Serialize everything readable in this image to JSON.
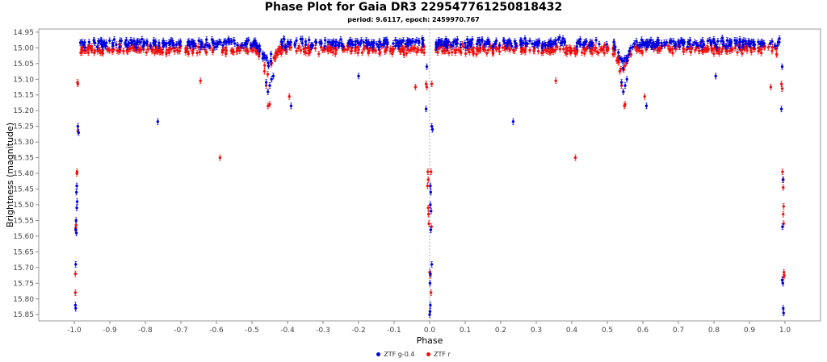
{
  "chart_data": {
    "type": "scatter",
    "title": "Phase Plot for Gaia DR3 2295477612508184​32",
    "subtitle": "period: 9.6117, epoch: 2459970.767",
    "xlabel": "Phase",
    "ylabel": "Brightness (magnitude)",
    "xlim": [
      -1.1,
      1.1
    ],
    "ylim": [
      15.87,
      14.94
    ],
    "y_inverted": true,
    "x_ticks": [
      "-1.0",
      "-0.9",
      "-0.8",
      "-0.7",
      "-0.6",
      "-0.5",
      "-0.4",
      "-0.3",
      "-0.2",
      "-0.1",
      "0.0",
      "0.1",
      "0.2",
      "0.3",
      "0.4",
      "0.5",
      "0.6",
      "0.7",
      "0.8",
      "0.9",
      "1.0"
    ],
    "y_ticks": [
      "14.95",
      "15.00",
      "15.05",
      "15.10",
      "15.15",
      "15.20",
      "15.25",
      "15.30",
      "15.35",
      "15.40",
      "15.45",
      "15.50",
      "15.55",
      "15.60",
      "15.65",
      "15.70",
      "15.75",
      "15.80",
      "15.85"
    ],
    "grid": false,
    "legend_position": "bottom-center",
    "series": [
      {
        "name": "ZTF g-0.4",
        "color": "#0000dd",
        "baseline": 14.985,
        "scatter": 0.02,
        "points": [
          [
            -0.99,
            15.25
          ],
          [
            -0.988,
            15.27
          ],
          [
            -0.993,
            15.44
          ],
          [
            -0.994,
            15.46
          ],
          [
            -0.992,
            15.49
          ],
          [
            -0.993,
            15.51
          ],
          [
            -0.995,
            15.55
          ],
          [
            -0.996,
            15.58
          ],
          [
            -0.994,
            15.59
          ],
          [
            -0.996,
            15.69
          ],
          [
            -0.997,
            15.82
          ],
          [
            -0.996,
            15.83
          ],
          [
            -0.765,
            15.235
          ],
          [
            -0.39,
            15.185
          ],
          [
            -0.2,
            15.09
          ],
          [
            -0.46,
            15.11
          ],
          [
            -0.455,
            15.14
          ],
          [
            -0.45,
            15.12
          ],
          [
            -0.445,
            15.1
          ],
          [
            -0.44,
            15.09
          ],
          [
            -0.01,
            15.195
          ],
          [
            -0.008,
            15.06
          ],
          [
            0.006,
            15.25
          ],
          [
            0.008,
            15.26
          ],
          [
            0.002,
            15.44
          ],
          [
            0.003,
            15.46
          ],
          [
            0.002,
            15.5
          ],
          [
            0.004,
            15.52
          ],
          [
            0.003,
            15.58
          ],
          [
            0.006,
            15.69
          ],
          [
            0.002,
            15.72
          ],
          [
            0.001,
            15.75
          ],
          [
            0.002,
            15.82
          ],
          [
            0.001,
            15.84
          ],
          [
            0.0,
            15.85
          ],
          [
            0.235,
            15.235
          ],
          [
            0.61,
            15.185
          ],
          [
            0.805,
            15.09
          ],
          [
            0.54,
            15.11
          ],
          [
            0.545,
            15.14
          ],
          [
            0.55,
            15.12
          ],
          [
            0.555,
            15.1
          ],
          [
            0.99,
            15.195
          ],
          [
            0.992,
            15.06
          ],
          [
            0.995,
            15.42
          ],
          [
            0.993,
            15.57
          ],
          [
            0.992,
            15.74
          ],
          [
            0.994,
            15.75
          ],
          [
            0.995,
            15.83
          ],
          [
            0.996,
            15.845
          ]
        ]
      },
      {
        "name": "ZTF r",
        "color": "#ee1111",
        "baseline": 15.005,
        "scatter": 0.02,
        "points": [
          [
            -0.99,
            15.115
          ],
          [
            -0.991,
            15.11
          ],
          [
            -0.99,
            15.265
          ],
          [
            -0.992,
            15.395
          ],
          [
            -0.993,
            15.4
          ],
          [
            -0.995,
            15.565
          ],
          [
            -0.996,
            15.575
          ],
          [
            -0.997,
            15.72
          ],
          [
            -0.997,
            15.78
          ],
          [
            -0.645,
            15.105
          ],
          [
            -0.59,
            15.35
          ],
          [
            -0.395,
            15.155
          ],
          [
            -0.45,
            15.18
          ],
          [
            -0.455,
            15.185
          ],
          [
            -0.46,
            15.12
          ],
          [
            -0.465,
            15.075
          ],
          [
            -0.04,
            15.125
          ],
          [
            -0.01,
            15.115
          ],
          [
            -0.008,
            15.125
          ],
          [
            -0.005,
            15.395
          ],
          [
            -0.004,
            15.42
          ],
          [
            -0.006,
            15.44
          ],
          [
            -0.004,
            15.51
          ],
          [
            -0.003,
            15.53
          ],
          [
            -0.002,
            15.56
          ],
          [
            0.0,
            15.715
          ],
          [
            0.002,
            15.725
          ],
          [
            0.004,
            15.78
          ],
          [
            0.006,
            15.115
          ],
          [
            0.004,
            15.395
          ],
          [
            0.005,
            15.57
          ],
          [
            0.355,
            15.105
          ],
          [
            0.41,
            15.35
          ],
          [
            0.605,
            15.155
          ],
          [
            0.55,
            15.18
          ],
          [
            0.548,
            15.185
          ],
          [
            0.54,
            15.12
          ],
          [
            0.535,
            15.075
          ],
          [
            0.96,
            15.125
          ],
          [
            0.99,
            15.115
          ],
          [
            0.992,
            15.13
          ],
          [
            0.993,
            15.395
          ],
          [
            0.994,
            15.42
          ],
          [
            0.995,
            15.445
          ],
          [
            0.996,
            15.505
          ],
          [
            0.995,
            15.53
          ],
          [
            0.996,
            15.56
          ],
          [
            0.997,
            15.715
          ],
          [
            0.998,
            15.725
          ],
          [
            0.996,
            15.73
          ]
        ]
      }
    ]
  }
}
